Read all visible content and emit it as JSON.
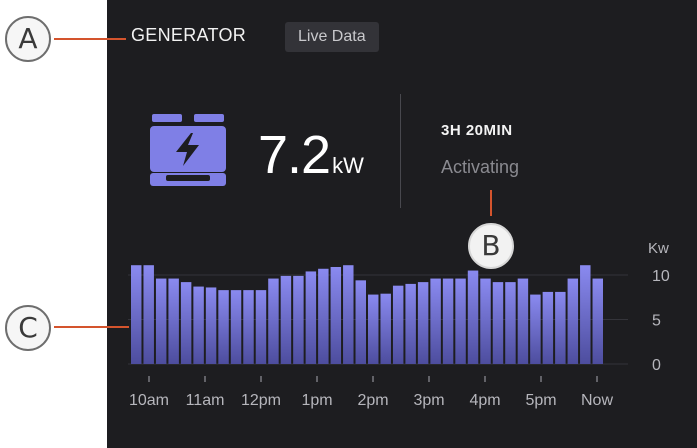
{
  "header": {
    "title": "GENERATOR",
    "chip_label": "Live Data"
  },
  "generator": {
    "icon": "generator-icon",
    "power_value": "7.2",
    "power_unit": "kW",
    "duration": "3H 20MIN",
    "status": "Activating"
  },
  "callouts": {
    "a": "A",
    "b": "B",
    "c": "C"
  },
  "colors": {
    "panel": "#1d1d20",
    "accent": "#7f7fe6",
    "leader": "#d4542d"
  },
  "chart_data": {
    "type": "bar",
    "unit_label": "Kw",
    "ylim": [
      0,
      10
    ],
    "yticks": [
      10,
      5,
      0
    ],
    "xticks": [
      "10am",
      "11am",
      "12pm",
      "1pm",
      "2pm",
      "3pm",
      "4pm",
      "5pm",
      "Now"
    ],
    "values": [
      11.1,
      11.1,
      9.6,
      9.6,
      9.2,
      8.7,
      8.6,
      8.3,
      8.3,
      8.3,
      8.3,
      9.6,
      9.9,
      9.9,
      10.4,
      10.7,
      10.9,
      11.1,
      9.4,
      7.8,
      7.9,
      8.8,
      9.0,
      9.2,
      9.6,
      9.6,
      9.6,
      10.5,
      9.6,
      9.2,
      9.2,
      9.6,
      7.8,
      8.1,
      8.1,
      9.6,
      11.1,
      9.6
    ]
  }
}
